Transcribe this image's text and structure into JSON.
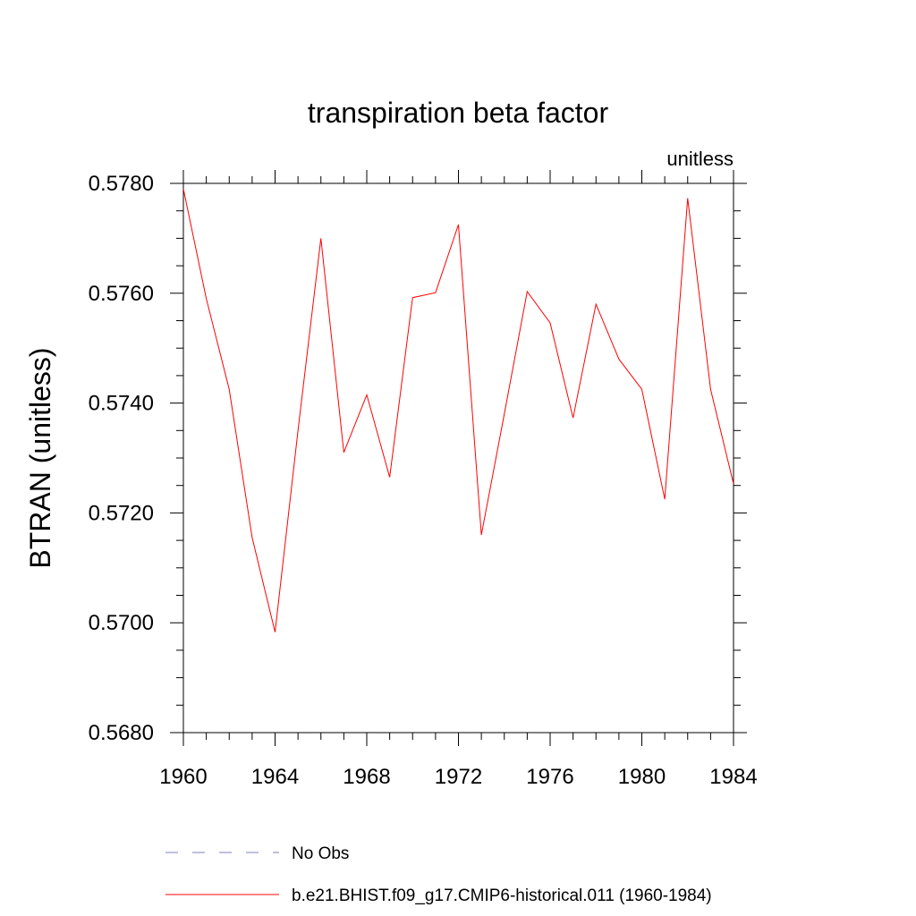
{
  "chart_data": {
    "type": "line",
    "title": "transpiration beta factor",
    "units_label": "unitless",
    "ylabel": "BTRAN  (unitless)",
    "xlabel": "",
    "xlim": [
      1960,
      1984
    ],
    "ylim": [
      0.568,
      0.578
    ],
    "x_ticks": [
      1960,
      1964,
      1968,
      1972,
      1976,
      1980,
      1984
    ],
    "y_ticks": [
      0.568,
      0.57,
      0.572,
      0.574,
      0.576,
      0.578
    ],
    "x_tick_labels": [
      "1960",
      "1964",
      "1968",
      "1972",
      "1976",
      "1980",
      "1984"
    ],
    "y_tick_labels": [
      "0.5680",
      "0.5700",
      "0.5720",
      "0.5740",
      "0.5760",
      "0.5780"
    ],
    "grid": false,
    "legend_placement": "bottom",
    "series": [
      {
        "name": "b.e21.BHIST.f09_g17.CMIP6-historical.011 (1960-1984)",
        "color": "#ff0000",
        "style": "solid",
        "x": [
          1960,
          1961,
          1962,
          1963,
          1964,
          1965,
          1966,
          1967,
          1968,
          1969,
          1970,
          1971,
          1972,
          1973,
          1974,
          1975,
          1976,
          1977,
          1978,
          1979,
          1980,
          1981,
          1982,
          1983,
          1984
        ],
        "y": [
          0.5779,
          0.5759,
          0.57425,
          0.57155,
          0.56983,
          0.5735,
          0.577,
          0.5731,
          0.57415,
          0.57265,
          0.57592,
          0.57601,
          0.57725,
          0.5716,
          0.5738,
          0.57603,
          0.57546,
          0.57373,
          0.5758,
          0.5748,
          0.57425,
          0.57225,
          0.57773,
          0.57425,
          0.57253
        ]
      }
    ],
    "legend": [
      {
        "label": "No Obs",
        "color": "#8080c0",
        "style": "dashed"
      },
      {
        "label": "b.e21.BHIST.f09_g17.CMIP6-historical.011 (1960-1984)",
        "color": "#ff0000",
        "style": "solid"
      }
    ]
  }
}
